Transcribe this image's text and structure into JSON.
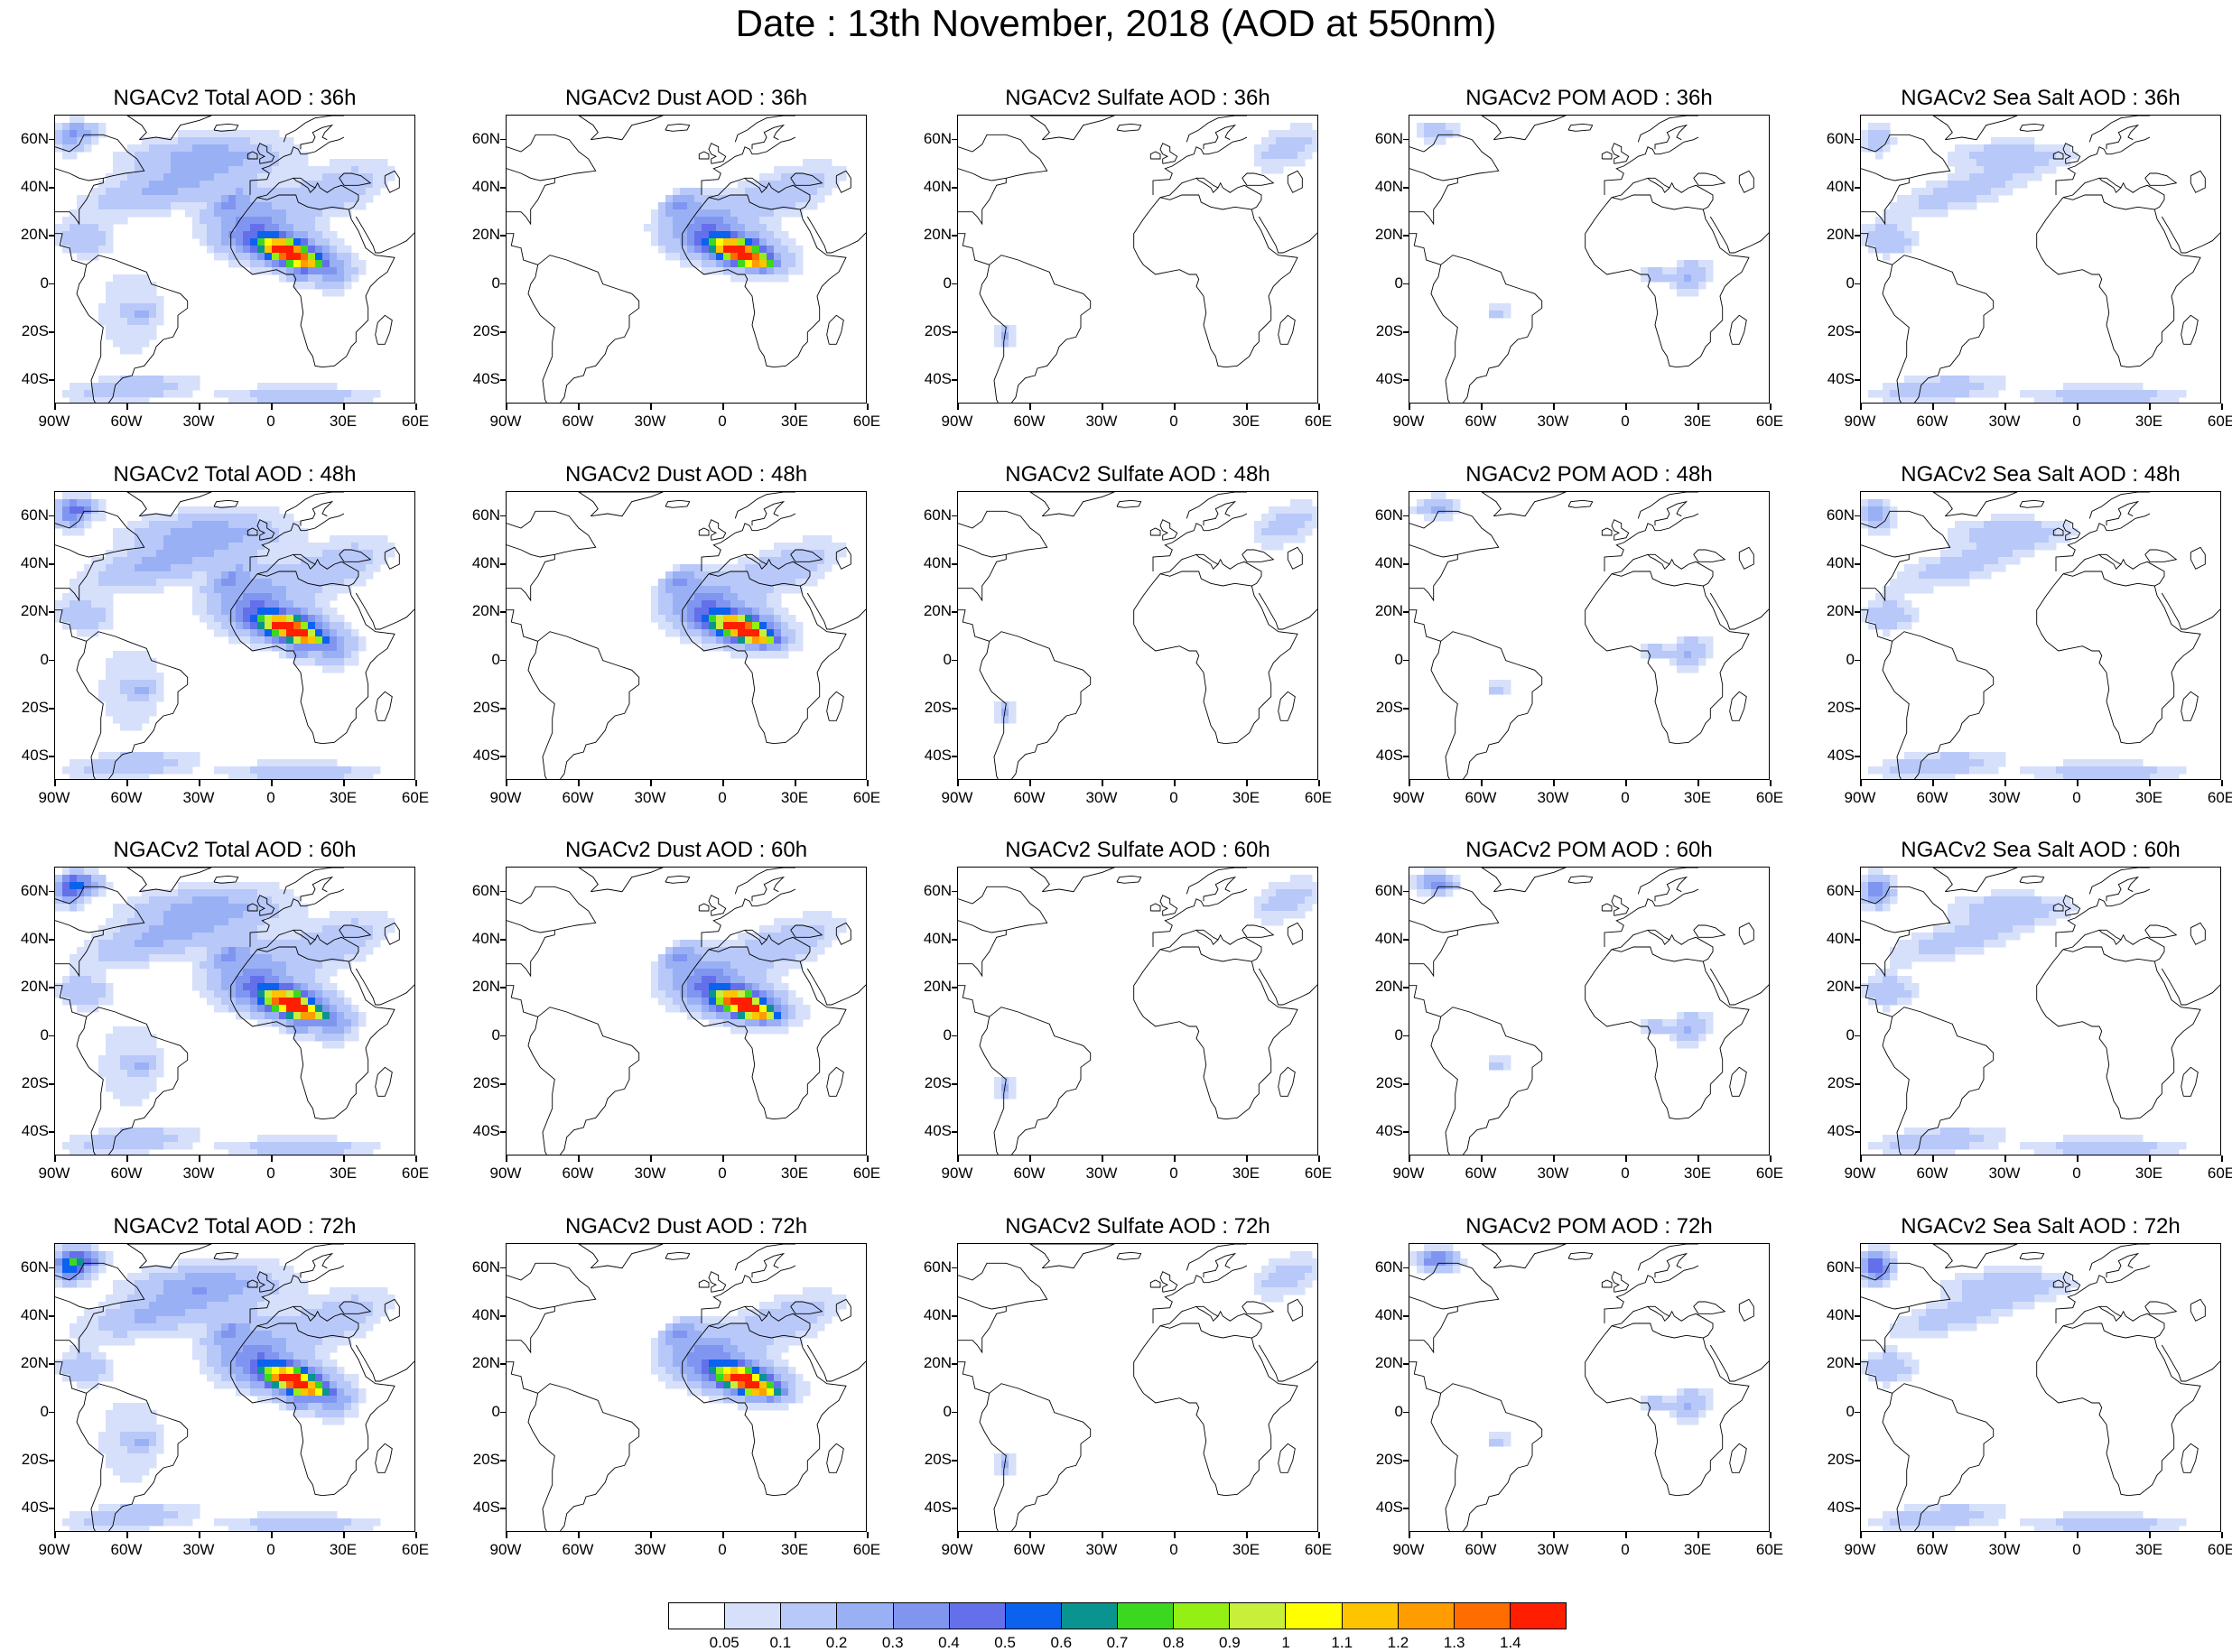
{
  "title": "Date : 13th November, 2018 (AOD at 550nm)",
  "panels": [
    [
      "NGACv2 Total AOD : 36h",
      "NGACv2 Dust AOD : 36h",
      "NGACv2 Sulfate AOD : 36h",
      "NGACv2 POM AOD : 36h",
      "NGACv2 Sea Salt AOD : 36h"
    ],
    [
      "NGACv2 Total AOD : 48h",
      "NGACv2 Dust AOD : 48h",
      "NGACv2 Sulfate AOD : 48h",
      "NGACv2 POM AOD : 48h",
      "NGACv2 Sea Salt AOD : 48h"
    ],
    [
      "NGACv2 Total AOD : 60h",
      "NGACv2 Dust AOD : 60h",
      "NGACv2 Sulfate AOD : 60h",
      "NGACv2 POM AOD : 60h",
      "NGACv2 Sea Salt AOD : 60h"
    ],
    [
      "NGACv2 Total AOD : 72h",
      "NGACv2 Dust AOD : 72h",
      "NGACv2 Sulfate AOD : 72h",
      "NGACv2 POM AOD : 72h",
      "NGACv2 Sea Salt  AOD : 72h"
    ]
  ],
  "lat_labels": [
    "60N",
    "40N",
    "20N",
    "0",
    "20S",
    "40S"
  ],
  "lon_labels": [
    "90W",
    "60W",
    "30W",
    "0",
    "30E",
    "60E"
  ],
  "colorbar": {
    "labels": [
      "0.05",
      "0.1",
      "0.2",
      "0.3",
      "0.4",
      "0.5",
      "0.6",
      "0.7",
      "0.8",
      "0.9",
      "1",
      "1.1",
      "1.2",
      "1.3",
      "1.4"
    ],
    "colors": [
      "#ffffff",
      "#d6e0fb",
      "#b8c8f8",
      "#9ab0f5",
      "#8095f0",
      "#6470ea",
      "#0a62ee",
      "#0a9490",
      "#3cd820",
      "#94ef14",
      "#c8ef3a",
      "#ffff00",
      "#ffc400",
      "#ff9c00",
      "#ff6c00",
      "#ff1e00"
    ]
  }
}
